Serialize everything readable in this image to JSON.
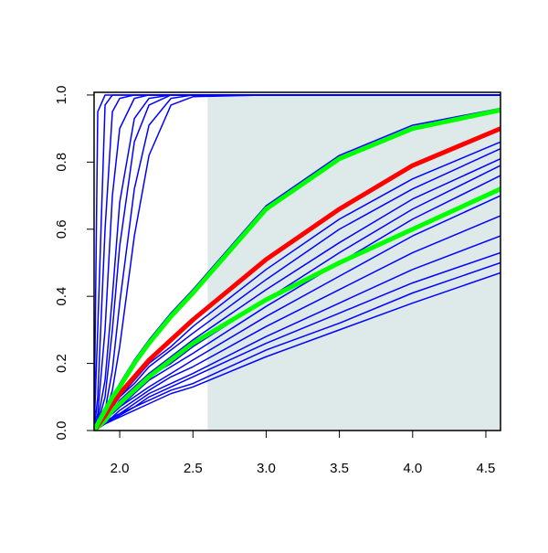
{
  "chart_data": {
    "type": "line",
    "x": [
      1.825,
      1.85,
      1.9,
      1.95,
      2.0,
      2.1,
      2.2,
      2.35,
      2.5,
      3.0,
      3.5,
      4.0,
      4.6
    ],
    "xlim": [
      1.825,
      4.6
    ],
    "ylim": [
      0,
      1.008
    ],
    "xticks": [
      {
        "value": 2.0,
        "label": "2.0"
      },
      {
        "value": 2.5,
        "label": "2.5"
      },
      {
        "value": 3.0,
        "label": "3.0"
      },
      {
        "value": 3.5,
        "label": "3.5"
      },
      {
        "value": 4.0,
        "label": "4.0"
      },
      {
        "value": 4.5,
        "label": "4.5"
      }
    ],
    "yticks": [
      {
        "value": 0.0,
        "label": "0.0"
      },
      0.2,
      0.4,
      0.6,
      0.8,
      {
        "value": 1.0,
        "label": "1.0"
      }
    ],
    "shaded_region": {
      "x": [
        2.6,
        4.6
      ],
      "y": [
        0,
        1
      ],
      "color": "#deeaea"
    },
    "series": [
      {
        "color": "#0000ff",
        "line_width": 1.5,
        "values": [
          0,
          0.95,
          1,
          1,
          1,
          1,
          1,
          1,
          1,
          1,
          1,
          1,
          1
        ]
      },
      {
        "color": "#0000ff",
        "line_width": 1.5,
        "values": [
          0,
          0.3,
          0.97,
          1,
          1,
          1,
          1,
          1,
          1,
          1,
          1,
          1,
          1
        ]
      },
      {
        "color": "#0000ff",
        "line_width": 1.5,
        "values": [
          0,
          0.1,
          0.6,
          0.95,
          0.99,
          1,
          1,
          1,
          1,
          1,
          1,
          1,
          1
        ]
      },
      {
        "color": "#0000ff",
        "line_width": 1.5,
        "values": [
          0,
          0.05,
          0.3,
          0.7,
          0.9,
          0.99,
          1,
          1,
          1,
          1,
          1,
          1,
          1
        ]
      },
      {
        "color": "#0000ff",
        "line_width": 1.5,
        "values": [
          0,
          0.03,
          0.15,
          0.4,
          0.68,
          0.93,
          0.99,
          1,
          1,
          1,
          1,
          1,
          1
        ]
      },
      {
        "color": "#0000ff",
        "line_width": 1.5,
        "values": [
          0,
          0.02,
          0.1,
          0.3,
          0.55,
          0.86,
          0.97,
          1,
          1,
          1,
          1,
          1,
          1
        ]
      },
      {
        "color": "#0000ff",
        "line_width": 1.5,
        "values": [
          0,
          0.01,
          0.06,
          0.18,
          0.38,
          0.72,
          0.91,
          0.99,
          1,
          1,
          1,
          1,
          1
        ]
      },
      {
        "color": "#0000ff",
        "line_width": 1.5,
        "values": [
          0,
          0.01,
          0.05,
          0.12,
          0.25,
          0.58,
          0.82,
          0.97,
          0.995,
          1,
          1,
          1,
          1
        ]
      },
      {
        "color": "#0000ff",
        "line_width": 1.5,
        "values": [
          0,
          0.02,
          0.06,
          0.1,
          0.14,
          0.21,
          0.27,
          0.35,
          0.42,
          0.67,
          0.82,
          0.91,
          0.96
        ]
      },
      {
        "color": "#0000ff",
        "line_width": 1.5,
        "values": [
          0,
          0.015,
          0.04,
          0.07,
          0.1,
          0.15,
          0.2,
          0.25,
          0.31,
          0.48,
          0.63,
          0.75,
          0.86
        ]
      },
      {
        "color": "#0000ff",
        "line_width": 1.5,
        "values": [
          0,
          0.015,
          0.04,
          0.07,
          0.1,
          0.14,
          0.19,
          0.24,
          0.29,
          0.45,
          0.6,
          0.72,
          0.84
        ]
      },
      {
        "color": "#0000ff",
        "line_width": 1.5,
        "values": [
          0,
          0.01,
          0.035,
          0.06,
          0.09,
          0.13,
          0.17,
          0.22,
          0.27,
          0.42,
          0.56,
          0.69,
          0.81
        ]
      },
      {
        "color": "#0000ff",
        "line_width": 1.5,
        "values": [
          0,
          0.01,
          0.03,
          0.055,
          0.08,
          0.12,
          0.16,
          0.2,
          0.25,
          0.39,
          0.53,
          0.66,
          0.79
        ]
      },
      {
        "color": "#0000ff",
        "line_width": 1.5,
        "values": [
          0,
          0.01,
          0.03,
          0.05,
          0.07,
          0.11,
          0.15,
          0.19,
          0.23,
          0.37,
          0.5,
          0.63,
          0.76
        ]
      },
      {
        "color": "#0000ff",
        "line_width": 1.5,
        "values": [
          0,
          0.01,
          0.03,
          0.05,
          0.07,
          0.1,
          0.13,
          0.17,
          0.21,
          0.34,
          0.46,
          0.58,
          0.7
        ]
      },
      {
        "color": "#0000ff",
        "line_width": 1.5,
        "values": [
          0,
          0.01,
          0.025,
          0.04,
          0.06,
          0.09,
          0.12,
          0.16,
          0.19,
          0.31,
          0.42,
          0.53,
          0.64
        ]
      },
      {
        "color": "#0000ff",
        "line_width": 1.5,
        "values": [
          0,
          0.01,
          0.02,
          0.04,
          0.05,
          0.08,
          0.11,
          0.14,
          0.17,
          0.28,
          0.38,
          0.48,
          0.58
        ]
      },
      {
        "color": "#0000ff",
        "line_width": 1.5,
        "values": [
          0,
          0.01,
          0.02,
          0.035,
          0.05,
          0.07,
          0.1,
          0.13,
          0.16,
          0.26,
          0.35,
          0.44,
          0.53
        ]
      },
      {
        "color": "#0000ff",
        "line_width": 1.5,
        "values": [
          0,
          0.01,
          0.02,
          0.03,
          0.045,
          0.07,
          0.09,
          0.12,
          0.14,
          0.24,
          0.32,
          0.41,
          0.5
        ]
      },
      {
        "color": "#0000ff",
        "line_width": 1.5,
        "values": [
          0,
          0.005,
          0.02,
          0.03,
          0.04,
          0.06,
          0.08,
          0.11,
          0.13,
          0.22,
          0.3,
          0.38,
          0.47
        ]
      },
      {
        "color": "#00ff00",
        "line_width": 5,
        "values": [
          0,
          0.01,
          0.03,
          0.06,
          0.08,
          0.12,
          0.16,
          0.21,
          0.26,
          0.39,
          0.5,
          0.6,
          0.72
        ]
      },
      {
        "color": "#ff0000",
        "line_width": 5,
        "values": [
          0,
          0.015,
          0.045,
          0.08,
          0.11,
          0.16,
          0.21,
          0.27,
          0.33,
          0.51,
          0.66,
          0.79,
          0.9
        ]
      },
      {
        "color": "#00ff00",
        "line_width": 5,
        "values": [
          0,
          0.02,
          0.06,
          0.1,
          0.13,
          0.2,
          0.26,
          0.34,
          0.41,
          0.66,
          0.81,
          0.9,
          0.955
        ]
      }
    ]
  }
}
